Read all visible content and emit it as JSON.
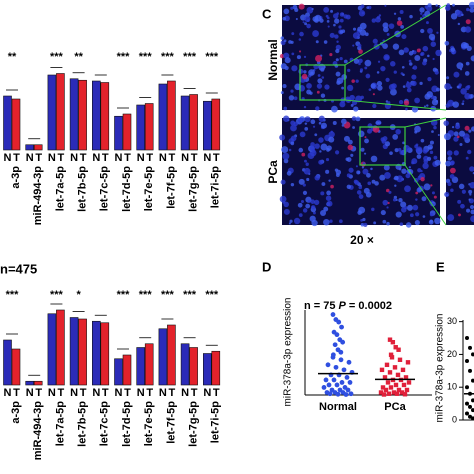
{
  "panel_labels": {
    "c": "C",
    "d": "D",
    "e": "E"
  },
  "top_chart": {
    "type": "bar",
    "group_labels": [
      "N",
      "T"
    ],
    "categories": [
      "a-3p",
      "miR-494-3p",
      "let-7a-5p",
      "let-7b-5p",
      "let-7c-5p",
      "let-7d-5p",
      "let-7e-5p",
      "let-7f-5p",
      "let-7g-5p",
      "let-7i-5p"
    ],
    "stars": [
      "**",
      null,
      "***",
      "**",
      null,
      "***",
      "***",
      "***",
      "***",
      "***"
    ],
    "normal": {
      "color": "#2b2bb8",
      "values": [
        0.72,
        0.07,
        1.0,
        0.95,
        0.92,
        0.45,
        0.6,
        0.88,
        0.72,
        0.65
      ]
    },
    "tumor": {
      "color": "#e3222b",
      "values": [
        0.68,
        0.07,
        1.02,
        0.93,
        0.9,
        0.48,
        0.62,
        0.92,
        0.74,
        0.68
      ]
    }
  },
  "bottom_chart": {
    "type": "bar",
    "title": "n=475",
    "group_labels": [
      "N",
      "T"
    ],
    "categories": [
      "a-3p",
      "miR-494-3p",
      "let-7a-5p",
      "let-7b-5p",
      "let-7c-5p",
      "let-7d-5p",
      "let-7e-5p",
      "let-7f-5p",
      "let-7g-5p",
      "let-7i-5p"
    ],
    "stars": [
      "***",
      null,
      "***",
      "*",
      null,
      "***",
      "***",
      "***",
      "***",
      "***"
    ],
    "normal": {
      "color": "#2b2bb8",
      "values": [
        0.6,
        0.05,
        0.95,
        0.9,
        0.85,
        0.35,
        0.5,
        0.75,
        0.55,
        0.42
      ]
    },
    "tumor": {
      "color": "#e3222b",
      "values": [
        0.48,
        0.05,
        1.0,
        0.88,
        0.83,
        0.4,
        0.55,
        0.8,
        0.5,
        0.45
      ]
    }
  },
  "panel_c": {
    "rows": [
      "Normal",
      "PCa"
    ],
    "scale": "20 ×"
  },
  "panel_d": {
    "type": "scatter",
    "title_n": "n = 75",
    "title_p": "P",
    "title_p_value": "= 0.0002",
    "y_label": "miR-378a-3p expression",
    "categories": [
      "Normal",
      "PCa"
    ],
    "ylim": [
      0,
      35
    ],
    "series": [
      {
        "color": "#2f4fe0",
        "mean": 8.5,
        "values": [
          32,
          30,
          29,
          27,
          25,
          24,
          22,
          21,
          20,
          18,
          17,
          16,
          15,
          14,
          13,
          12,
          11,
          10,
          9,
          8,
          8,
          7,
          6,
          6,
          5,
          5,
          4,
          4,
          3,
          3,
          2,
          2,
          2,
          1,
          1,
          1,
          0.5,
          0.5,
          0.3,
          0.2
        ]
      },
      {
        "color": "#e0203a",
        "mean": 6.2,
        "values": [
          22,
          21,
          19,
          18,
          16,
          15,
          14,
          13,
          12,
          11,
          10,
          10,
          9,
          8,
          7,
          7,
          6,
          6,
          5,
          5,
          4,
          4,
          3,
          3,
          2,
          2,
          2,
          1,
          1,
          1,
          0.5,
          0.5,
          0.3,
          0.2
        ]
      }
    ]
  },
  "panel_e": {
    "type": "scatter",
    "y_label": "miR-378a-3p expression",
    "ylim": [
      0,
      30.5
    ],
    "yticks": [
      0,
      10,
      20,
      30
    ],
    "mean": 8,
    "values": [
      25,
      22,
      20,
      18,
      15,
      12,
      10,
      8,
      6,
      5,
      4,
      3,
      2,
      1,
      0.5
    ]
  }
}
